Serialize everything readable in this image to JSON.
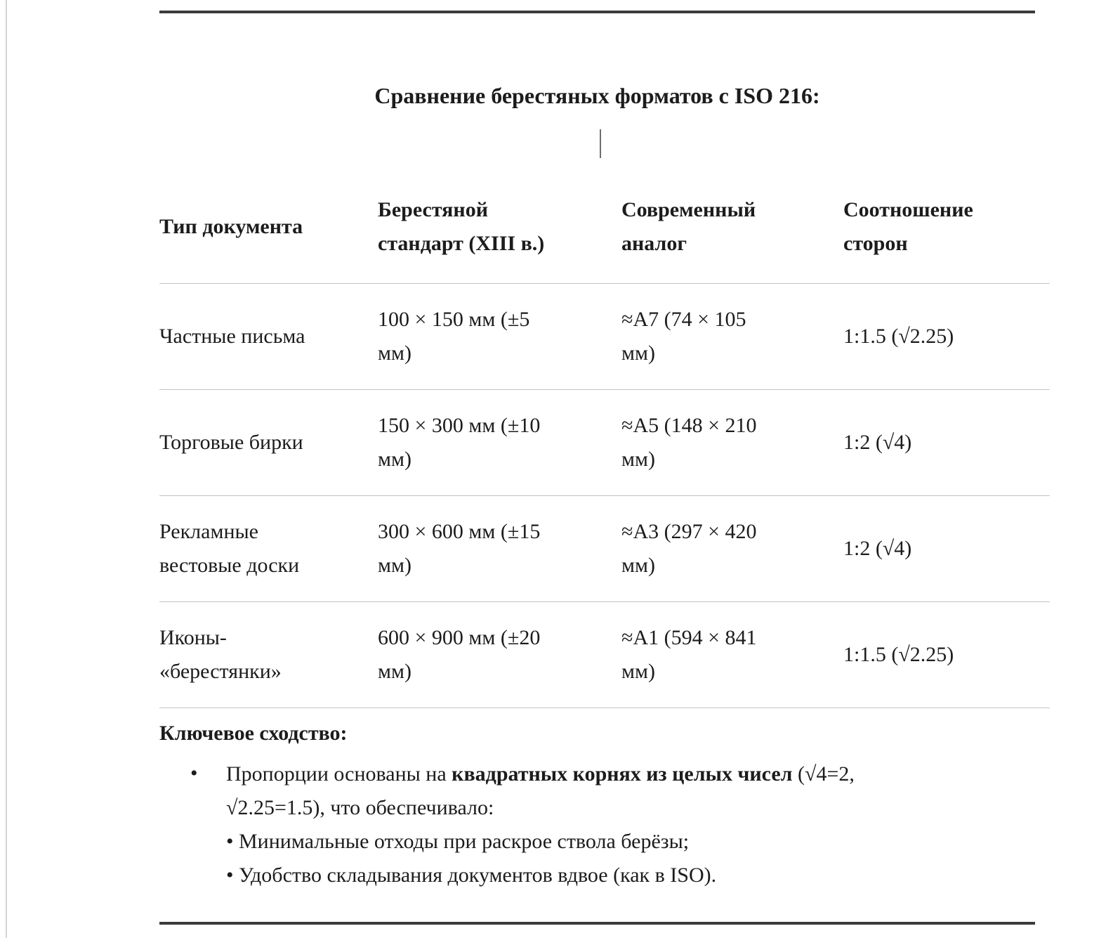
{
  "document": {
    "title": "Сравнение берестяных форматов с ISO 216:"
  },
  "table": {
    "headers": [
      {
        "l1": "Тип документа"
      },
      {
        "l1": "Берестяной",
        "l2": "стандарт (XIII в.)"
      },
      {
        "l1": "Современный",
        "l2": "аналог"
      },
      {
        "l1": "Соотношение",
        "l2": "сторон"
      }
    ],
    "rows": [
      {
        "cells": [
          {
            "l1": "Частные письма"
          },
          {
            "l1": "100 × 150 мм (±5",
            "l2": "мм)"
          },
          {
            "l1": "≈A7 (74 × 105",
            "l2": "мм)"
          },
          {
            "l1": "1:1.5 (√2.25)"
          }
        ]
      },
      {
        "cells": [
          {
            "l1": "Торговые бирки"
          },
          {
            "l1": "150 × 300 мм (±10",
            "l2": "мм)"
          },
          {
            "l1": "≈A5 (148 × 210",
            "l2": "мм)"
          },
          {
            "l1": "1:2 (√4)"
          }
        ]
      },
      {
        "cells": [
          {
            "l1": "Рекламные",
            "l2": "вестовые доски"
          },
          {
            "l1": "300 × 600 мм (±15",
            "l2": "мм)"
          },
          {
            "l1": "≈A3 (297 × 420",
            "l2": "мм)"
          },
          {
            "l1": "1:2 (√4)"
          }
        ]
      },
      {
        "cells": [
          {
            "l1": "Иконы-",
            "l2": "«берестянки»"
          },
          {
            "l1": "600 × 900 мм (±20",
            "l2": "мм)"
          },
          {
            "l1": "≈A1 (594 × 841",
            "l2": "мм)"
          },
          {
            "l1": "1:1.5 (√2.25)"
          }
        ]
      }
    ]
  },
  "key_similarity": {
    "heading": "Ключевое сходство:",
    "marker": "•",
    "bullet_pre": "Пропорции основаны на ",
    "bullet_bold": "квадратных корнях из целых чисел",
    "bullet_post_line1": " (√4=2,",
    "bullet_post_line2": "√2.25=1.5), что обеспечивало:",
    "sub_bullet_1": "• Минимальные отходы при раскрое ствола берёзы;",
    "sub_bullet_2": "• Удобство складывания документов вдвое (как в ISO)."
  },
  "colors": {
    "rule_dark": "#3b3b3b",
    "table_separator": "#c3c3c3",
    "panel_border": "#d4d4d4",
    "text": "#1c1c1c",
    "caret": "#6e6e6e"
  }
}
